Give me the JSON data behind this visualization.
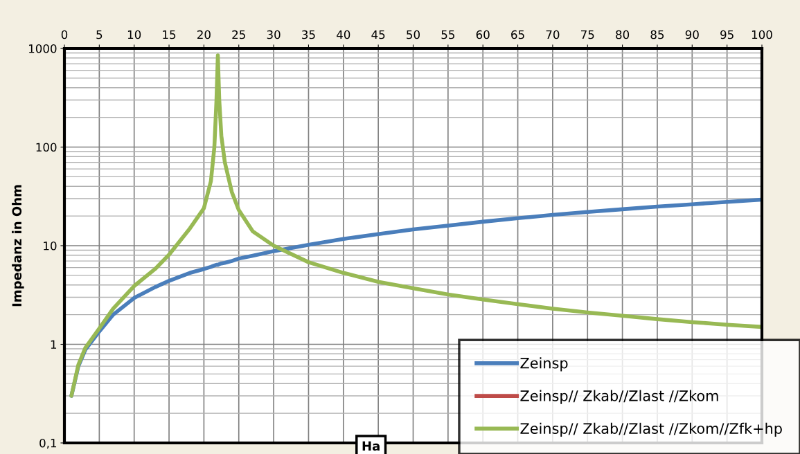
{
  "chart_data": {
    "type": "line",
    "ylabel": "Impedanz in Ohm",
    "log": "y",
    "grid": true,
    "legend": "bottom right",
    "x": [
      1,
      2,
      3,
      5,
      7,
      10,
      13,
      15,
      18,
      20,
      21,
      21.5,
      21.8,
      22,
      22.2,
      22.5,
      23,
      24,
      25,
      27,
      30,
      35,
      40,
      45,
      50,
      55,
      60,
      65,
      70,
      75,
      80,
      85,
      90,
      95,
      100
    ],
    "series": [
      {
        "name": "Zeinsp",
        "color": "#4a7ebb",
        "values": [
          0.3,
          0.6,
          0.88,
          1.35,
          2.0,
          2.95,
          3.8,
          4.4,
          5.3,
          5.8,
          6.1,
          6.3,
          6.4,
          6.4,
          6.5,
          6.6,
          6.7,
          7.0,
          7.4,
          7.9,
          8.8,
          10.2,
          11.7,
          13.1,
          14.6,
          16,
          17.5,
          19,
          20.5,
          22,
          23.4,
          24.9,
          26.3,
          27.8,
          29.3
        ]
      },
      {
        "name": "Zeinsp// Zkab//Zlast //Zkom",
        "color": "#be4b48",
        "values": [
          null,
          null,
          null,
          null,
          null,
          null,
          null,
          null,
          null,
          null,
          null,
          null,
          null,
          null,
          null,
          null,
          null,
          null,
          null,
          null,
          null,
          null,
          null,
          null,
          null,
          null,
          null,
          null,
          null,
          null,
          null,
          null,
          null,
          null,
          null
        ]
      },
      {
        "name": "Zeinsp// Zkab//Zlast //Zkom//Zfk+hp",
        "color": "#98b954",
        "values": [
          0.3,
          0.62,
          0.92,
          1.45,
          2.3,
          3.9,
          5.8,
          8.1,
          15,
          24,
          45,
          100,
          300,
          850,
          300,
          130,
          70,
          35,
          23,
          14,
          10,
          6.8,
          5.3,
          4.3,
          3.7,
          3.2,
          2.85,
          2.55,
          2.3,
          2.1,
          1.95,
          1.8,
          1.68,
          1.58,
          1.5
        ]
      }
    ],
    "xlim": [
      0,
      100
    ],
    "xticks": [
      0,
      5,
      10,
      15,
      20,
      25,
      30,
      35,
      40,
      45,
      50,
      55,
      60,
      65,
      70,
      75,
      80,
      85,
      90,
      95,
      100
    ],
    "ylim": [
      0.1,
      1000
    ],
    "yticks": [
      {
        "value": 0.1,
        "label": "0,1"
      },
      1,
      10,
      100,
      1000
    ],
    "annotations": [
      "Ha"
    ]
  }
}
